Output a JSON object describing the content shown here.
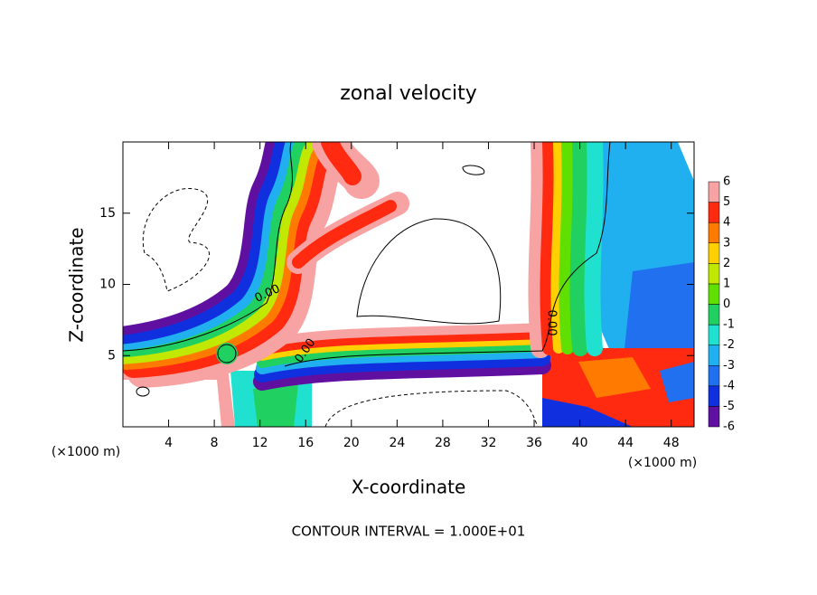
{
  "chart_data": {
    "type": "contour",
    "title": "zonal velocity",
    "x_label": "X-coordinate",
    "y_label": "Z-coordinate",
    "x_unit": "(×1000 m)",
    "footer": "CONTOUR INTERVAL = 1.000E+01",
    "contour_labels": [
      "0.00",
      "0.00",
      "0.00"
    ],
    "xlim": [
      0,
      50
    ],
    "xticks": [
      4,
      8,
      12,
      16,
      20,
      24,
      28,
      32,
      36,
      40,
      44,
      48
    ],
    "ylim": [
      0,
      20
    ],
    "yticks": [
      5,
      10,
      15
    ],
    "colorbar": {
      "levels": [
        -6,
        -5,
        -4,
        -3,
        -2,
        -1,
        0,
        1,
        2,
        3,
        4,
        5,
        6
      ],
      "colors": [
        "#6010a0",
        "#1030e0",
        "#2070f0",
        "#20b0f0",
        "#20e0d0",
        "#20d060",
        "#60e000",
        "#c0e800",
        "#ffd000",
        "#ff7a00",
        "#ff2a10",
        "#f7a3a3"
      ]
    }
  }
}
